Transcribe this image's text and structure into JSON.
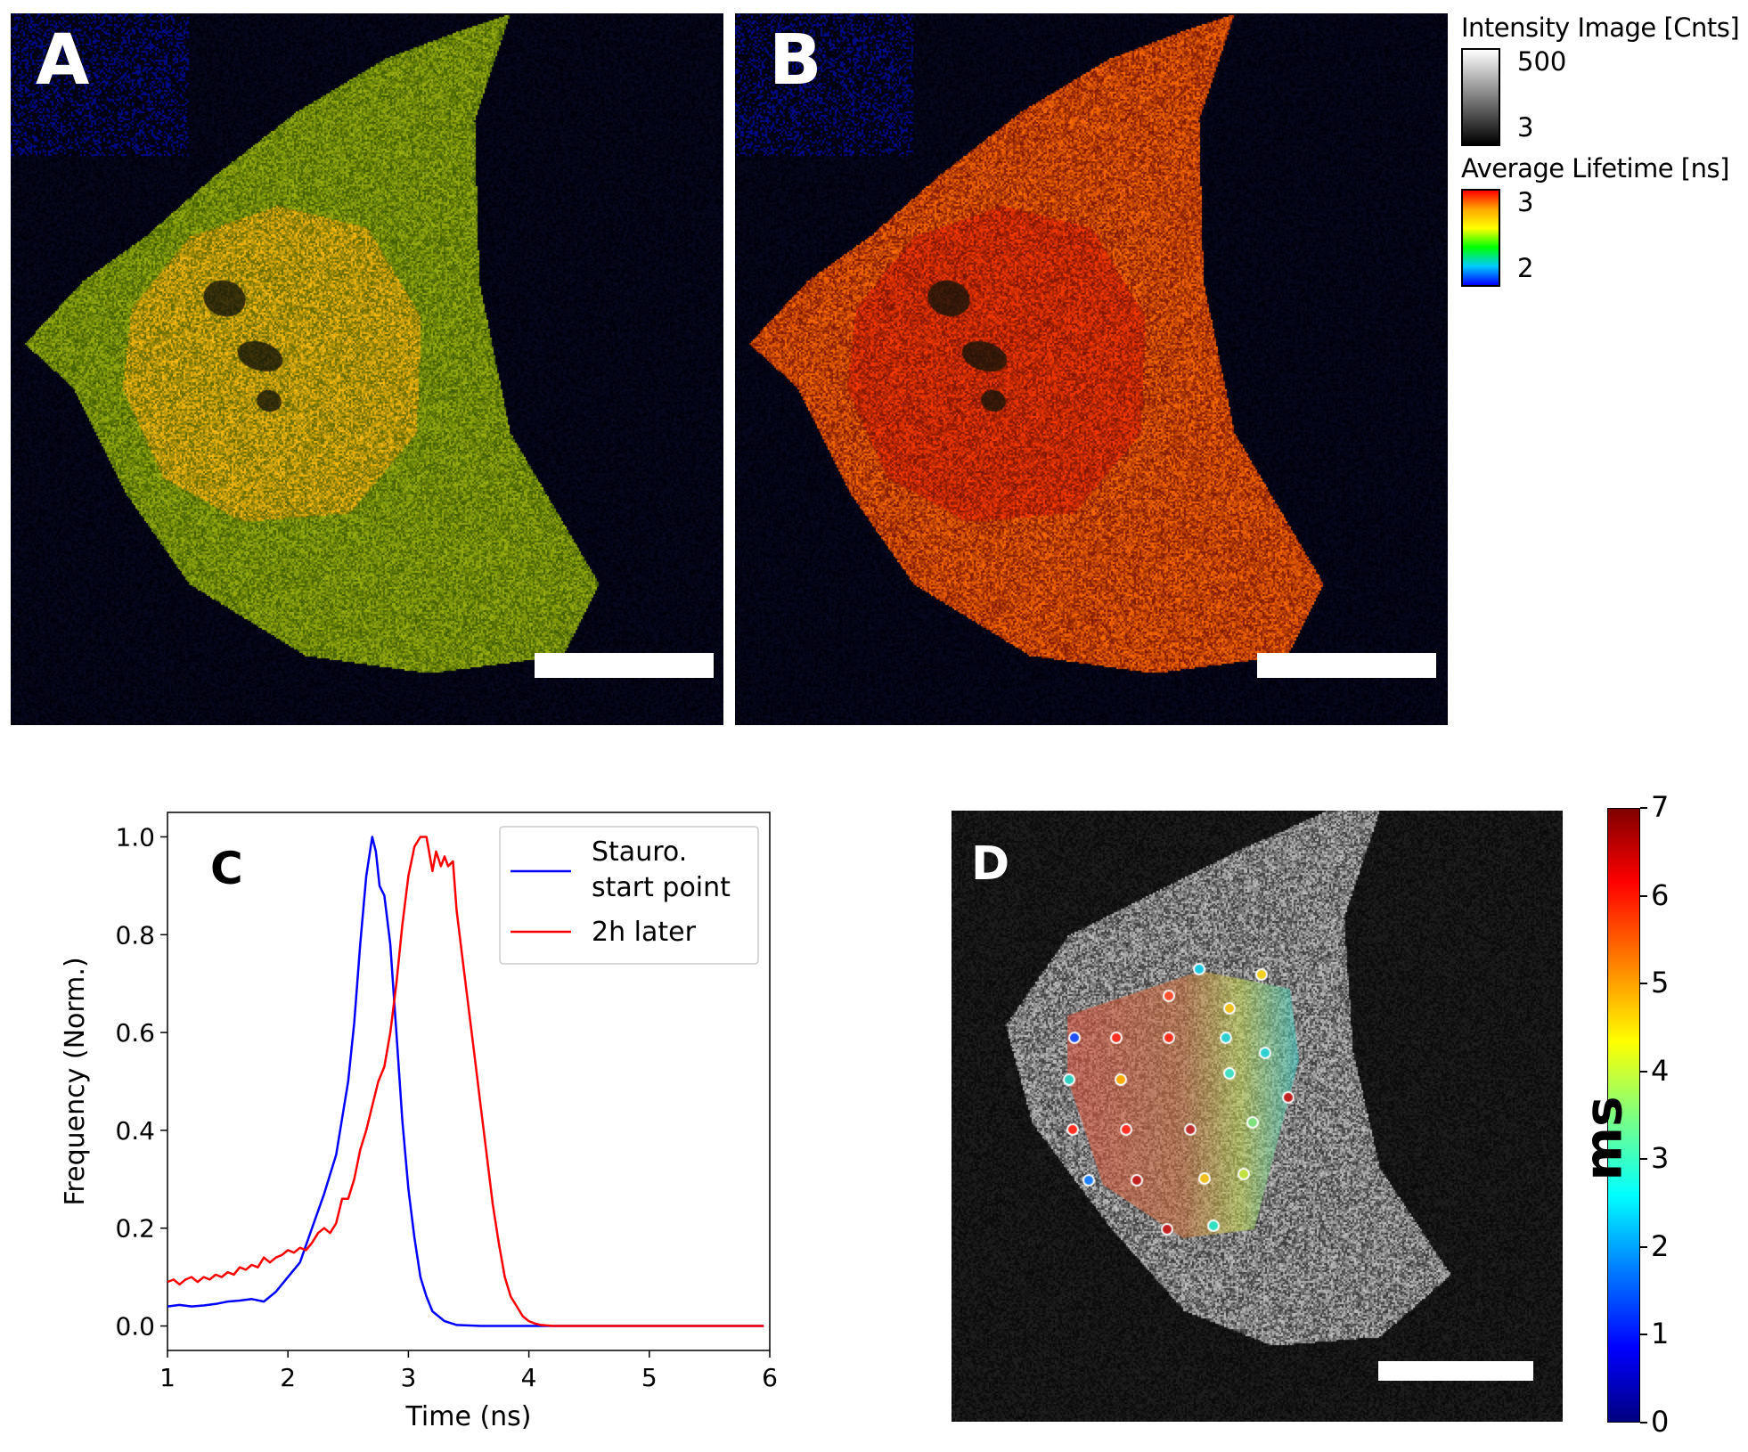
{
  "panels": {
    "a_letter": "A",
    "b_letter": "B",
    "c_letter": "C",
    "d_letter": "D"
  },
  "legend": {
    "intensity_title": "Intensity Image [Cnts]",
    "intensity_max": "500",
    "intensity_min": "3",
    "lifetime_title": "Average Lifetime [ns]",
    "lifetime_max": "3",
    "lifetime_min": "2"
  },
  "colorbar_d": {
    "unit": "ms",
    "ticks": [
      "0",
      "1",
      "2",
      "3",
      "4",
      "5",
      "6",
      "7"
    ],
    "range": [
      0,
      7
    ]
  },
  "chart_data": {
    "type": "line",
    "xlabel": "Time (ns)",
    "ylabel": "Frequency (Norm.)",
    "xlim": [
      1,
      6
    ],
    "ylim": [
      -0.05,
      1.05
    ],
    "xticks": [
      "1",
      "2",
      "3",
      "4",
      "5",
      "6"
    ],
    "yticks": [
      "0.0",
      "0.2",
      "0.4",
      "0.6",
      "0.8",
      "1.0"
    ],
    "legend_placement": "top-right",
    "grid": false,
    "series": [
      {
        "name": "Stauro. start point",
        "legend_lines": [
          "Stauro.",
          "start point"
        ],
        "color": "#0000ff",
        "x": [
          1.0,
          1.1,
          1.2,
          1.3,
          1.4,
          1.5,
          1.6,
          1.7,
          1.8,
          1.9,
          2.0,
          2.1,
          2.2,
          2.3,
          2.4,
          2.5,
          2.55,
          2.6,
          2.65,
          2.7,
          2.73,
          2.76,
          2.8,
          2.85,
          2.9,
          2.95,
          3.0,
          3.05,
          3.1,
          3.15,
          3.2,
          3.3,
          3.4,
          3.6,
          4.0,
          5.0,
          5.95
        ],
        "y": [
          0.04,
          0.043,
          0.04,
          0.042,
          0.045,
          0.05,
          0.052,
          0.055,
          0.05,
          0.07,
          0.1,
          0.13,
          0.2,
          0.27,
          0.35,
          0.5,
          0.62,
          0.78,
          0.92,
          1.0,
          0.97,
          0.9,
          0.88,
          0.78,
          0.6,
          0.42,
          0.28,
          0.18,
          0.1,
          0.06,
          0.03,
          0.01,
          0.002,
          0.0,
          0.0,
          0.0,
          0.0
        ]
      },
      {
        "name": "2h later",
        "legend_lines": [
          "2h later"
        ],
        "color": "#ff0000",
        "x": [
          1.0,
          1.05,
          1.1,
          1.15,
          1.2,
          1.25,
          1.3,
          1.35,
          1.4,
          1.45,
          1.5,
          1.55,
          1.6,
          1.65,
          1.7,
          1.75,
          1.8,
          1.85,
          1.9,
          1.95,
          2.0,
          2.05,
          2.1,
          2.15,
          2.2,
          2.25,
          2.3,
          2.35,
          2.4,
          2.45,
          2.5,
          2.55,
          2.6,
          2.65,
          2.7,
          2.75,
          2.8,
          2.85,
          2.9,
          2.95,
          3.0,
          3.05,
          3.1,
          3.15,
          3.2,
          3.23,
          3.27,
          3.3,
          3.33,
          3.37,
          3.4,
          3.45,
          3.5,
          3.55,
          3.6,
          3.65,
          3.7,
          3.75,
          3.8,
          3.85,
          3.9,
          3.95,
          4.0,
          4.05,
          4.1,
          4.2,
          5.0,
          5.95
        ],
        "y": [
          0.09,
          0.095,
          0.085,
          0.095,
          0.1,
          0.09,
          0.1,
          0.095,
          0.105,
          0.1,
          0.11,
          0.105,
          0.12,
          0.115,
          0.125,
          0.12,
          0.14,
          0.13,
          0.14,
          0.145,
          0.155,
          0.15,
          0.16,
          0.155,
          0.17,
          0.19,
          0.2,
          0.19,
          0.21,
          0.26,
          0.26,
          0.3,
          0.36,
          0.4,
          0.45,
          0.5,
          0.53,
          0.6,
          0.7,
          0.82,
          0.92,
          0.98,
          1.0,
          1.0,
          0.93,
          0.97,
          0.94,
          0.96,
          0.94,
          0.95,
          0.85,
          0.75,
          0.65,
          0.55,
          0.45,
          0.35,
          0.25,
          0.17,
          0.1,
          0.06,
          0.04,
          0.02,
          0.01,
          0.005,
          0.002,
          0.0,
          0.0,
          0.0
        ]
      }
    ]
  }
}
